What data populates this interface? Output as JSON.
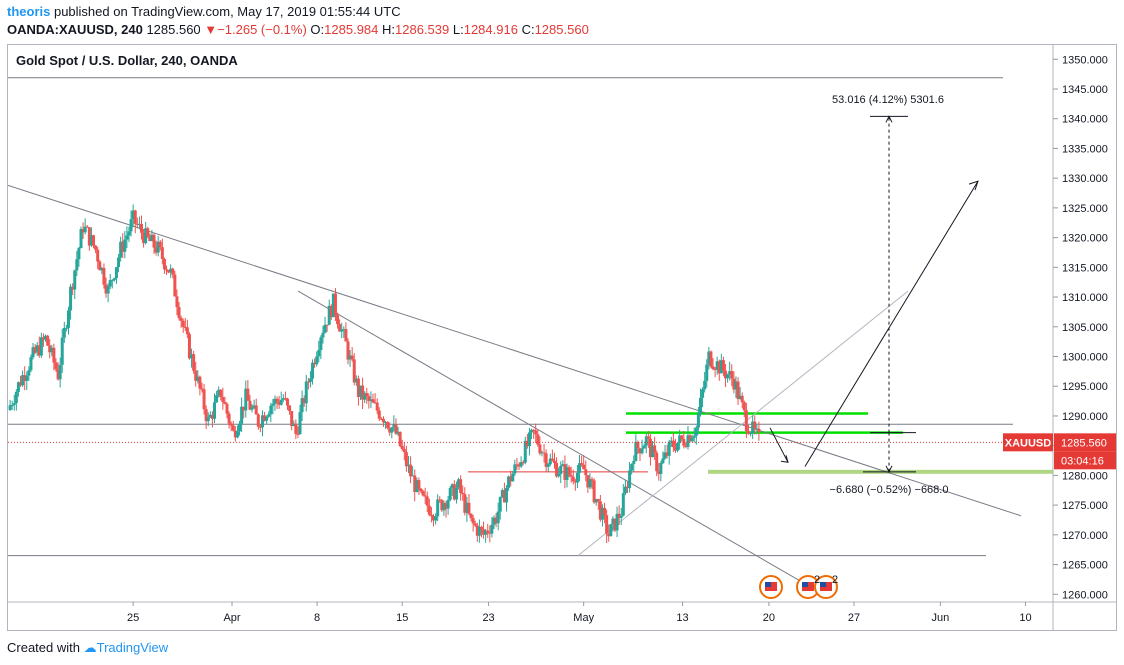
{
  "header": {
    "author": "theoris",
    "published_text": "published on TradingView.com, May 17, 2019 01:55:44 UTC",
    "symbol": "OANDA:XAUUSD, 240",
    "last": "1285.560",
    "change_arrow": "▼",
    "change": "−1.265 (−0.1%)",
    "o_label": "O:",
    "o_value": "1285.984",
    "h_label": "H:",
    "h_value": "1286.539",
    "l_label": "L:",
    "l_value": "1284.916",
    "c_label": "C:",
    "c_value": "1285.560"
  },
  "footer": {
    "created_with": "Created with",
    "brand": "TradingView"
  },
  "colors": {
    "up": "#26a69a",
    "down": "#ef5350",
    "green_level": "#00e000",
    "price_badge": "#e53935"
  },
  "chart_data": {
    "type": "candlestick",
    "title": "Gold Spot / U.S. Dollar, 240, OANDA",
    "y_axis": {
      "ylim": [
        1258.7,
        1352.4
      ],
      "ticks": [
        1260,
        1265,
        1270,
        1275,
        1280,
        1285,
        1290,
        1295,
        1300,
        1305,
        1310,
        1315,
        1320,
        1325,
        1330,
        1335,
        1340,
        1345,
        1350
      ],
      "position": "right"
    },
    "x_axis": {
      "range_days": [
        0,
        83.5
      ],
      "tick_labels": [
        "25",
        "Apr",
        "8",
        "15",
        "23",
        "May",
        "13",
        "20",
        "27",
        "Jun",
        "10"
      ],
      "tick_days": [
        10,
        17.9,
        24.7,
        31.5,
        38.4,
        46,
        53.9,
        60.8,
        67.6,
        74.5,
        81.3
      ]
    },
    "close_series": [
      [
        0,
        1291
      ],
      [
        1,
        1296
      ],
      [
        2,
        1300
      ],
      [
        3,
        1303
      ],
      [
        4,
        1297
      ],
      [
        5,
        1311
      ],
      [
        6,
        1322
      ],
      [
        7,
        1318
      ],
      [
        8,
        1311
      ],
      [
        9,
        1318
      ],
      [
        10,
        1323
      ],
      [
        11,
        1320
      ],
      [
        12,
        1318
      ],
      [
        13,
        1314
      ],
      [
        14,
        1305
      ],
      [
        15,
        1297
      ],
      [
        16,
        1289
      ],
      [
        17,
        1294
      ],
      [
        18,
        1287
      ],
      [
        19,
        1293
      ],
      [
        20,
        1289
      ],
      [
        21,
        1292
      ],
      [
        22,
        1293
      ],
      [
        23,
        1287
      ],
      [
        24,
        1296
      ],
      [
        25,
        1304
      ],
      [
        26,
        1309
      ],
      [
        27,
        1302
      ],
      [
        28,
        1294
      ],
      [
        29,
        1292
      ],
      [
        30,
        1290
      ],
      [
        31,
        1287
      ],
      [
        32,
        1281
      ],
      [
        33,
        1276
      ],
      [
        34,
        1274
      ],
      [
        35,
        1276
      ],
      [
        36,
        1278
      ],
      [
        37,
        1272
      ],
      [
        38,
        1270
      ],
      [
        39,
        1273
      ],
      [
        40,
        1279
      ],
      [
        41,
        1283
      ],
      [
        42,
        1287
      ],
      [
        43,
        1283
      ],
      [
        44,
        1281
      ],
      [
        45,
        1280
      ],
      [
        46,
        1281
      ],
      [
        47,
        1276
      ],
      [
        48,
        1270
      ],
      [
        49,
        1274
      ],
      [
        50,
        1284
      ],
      [
        51,
        1286
      ],
      [
        52,
        1281
      ],
      [
        53,
        1285
      ],
      [
        54,
        1286
      ],
      [
        55,
        1288
      ],
      [
        56,
        1300
      ],
      [
        57,
        1298
      ],
      [
        58,
        1296
      ],
      [
        59,
        1289
      ],
      [
        60,
        1286
      ]
    ],
    "current_price": 1285.56,
    "price_label": "XAUUSD",
    "countdown": "03:04:16",
    "annotations": [
      {
        "text": "53.016 (4.12%) 5301.6",
        "y": 1341
      },
      {
        "text": "−6.680 (−0.52%) −668.0",
        "y": 1280.2
      }
    ],
    "horizontal_levels": [
      1346.9,
      1288.6,
      1266.5,
      1280.6,
      1290.4,
      1287.2
    ],
    "event_badge_counts": [
      "2",
      "2"
    ]
  }
}
